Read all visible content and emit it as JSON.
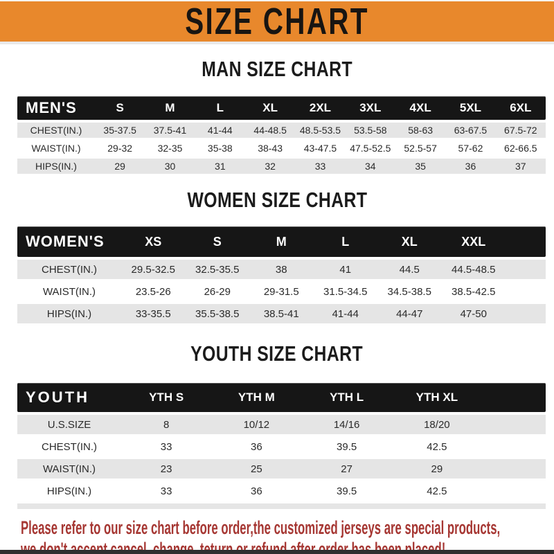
{
  "banner": {
    "title": "SIZE CHART"
  },
  "colors": {
    "banner_bg": "#E8882C",
    "table_header_bg": "#161616",
    "row_alt_bg": "#E5E5E5",
    "footer_red": "#A63733"
  },
  "sections": [
    {
      "id": "men",
      "title": "MAN SIZE CHART",
      "corner_label": "MEN'S",
      "columns": [
        "S",
        "M",
        "L",
        "XL",
        "2XL",
        "3XL",
        "4XL",
        "5XL",
        "6XL"
      ],
      "rows": [
        {
          "label": "CHEST(IN.)",
          "values": [
            "35-37.5",
            "37.5-41",
            "41-44",
            "44-48.5",
            "48.5-53.5",
            "53.5-58",
            "58-63",
            "63-67.5",
            "67.5-72"
          ]
        },
        {
          "label": "WAIST(IN.)",
          "values": [
            "29-32",
            "32-35",
            "35-38",
            "38-43",
            "43-47.5",
            "47.5-52.5",
            "52.5-57",
            "57-62",
            "62-66.5"
          ]
        },
        {
          "label": "HIPS(IN.)",
          "values": [
            "29",
            "30",
            "31",
            "32",
            "33",
            "34",
            "35",
            "36",
            "37"
          ]
        }
      ]
    },
    {
      "id": "women",
      "title": "WOMEN SIZE CHART",
      "corner_label": "WOMEN'S",
      "columns": [
        "XS",
        "S",
        "M",
        "L",
        "XL",
        "XXL"
      ],
      "rows": [
        {
          "label": "CHEST(IN.)",
          "values": [
            "29.5-32.5",
            "32.5-35.5",
            "38",
            "41",
            "44.5",
            "44.5-48.5"
          ]
        },
        {
          "label": "WAIST(IN.)",
          "values": [
            "23.5-26",
            "26-29",
            "29-31.5",
            "31.5-34.5",
            "34.5-38.5",
            "38.5-42.5"
          ]
        },
        {
          "label": "HIPS(IN.)",
          "values": [
            "33-35.5",
            "35.5-38.5",
            "38.5-41",
            "41-44",
            "44-47",
            "47-50"
          ]
        }
      ]
    },
    {
      "id": "youth",
      "title": "YOUTH SIZE CHART",
      "corner_label": "YOUTH",
      "columns": [
        "YTH S",
        "YTH M",
        "YTH L",
        "YTH XL"
      ],
      "rows": [
        {
          "label": "U.S.SIZE",
          "values": [
            "8",
            "10/12",
            "14/16",
            "18/20"
          ]
        },
        {
          "label": "CHEST(IN.)",
          "values": [
            "33",
            "36",
            "39.5",
            "42.5"
          ]
        },
        {
          "label": "WAIST(IN.)",
          "values": [
            "23",
            "25",
            "27",
            "29"
          ]
        },
        {
          "label": "HIPS(IN.)",
          "values": [
            "33",
            "36",
            "39.5",
            "42.5"
          ]
        }
      ]
    }
  ],
  "footer": {
    "line1": "Please refer to our size chart before order,the customized jerseys are special products,",
    "line2": "we don't accept cancel, change, teturn or refund after order has been placed!"
  }
}
